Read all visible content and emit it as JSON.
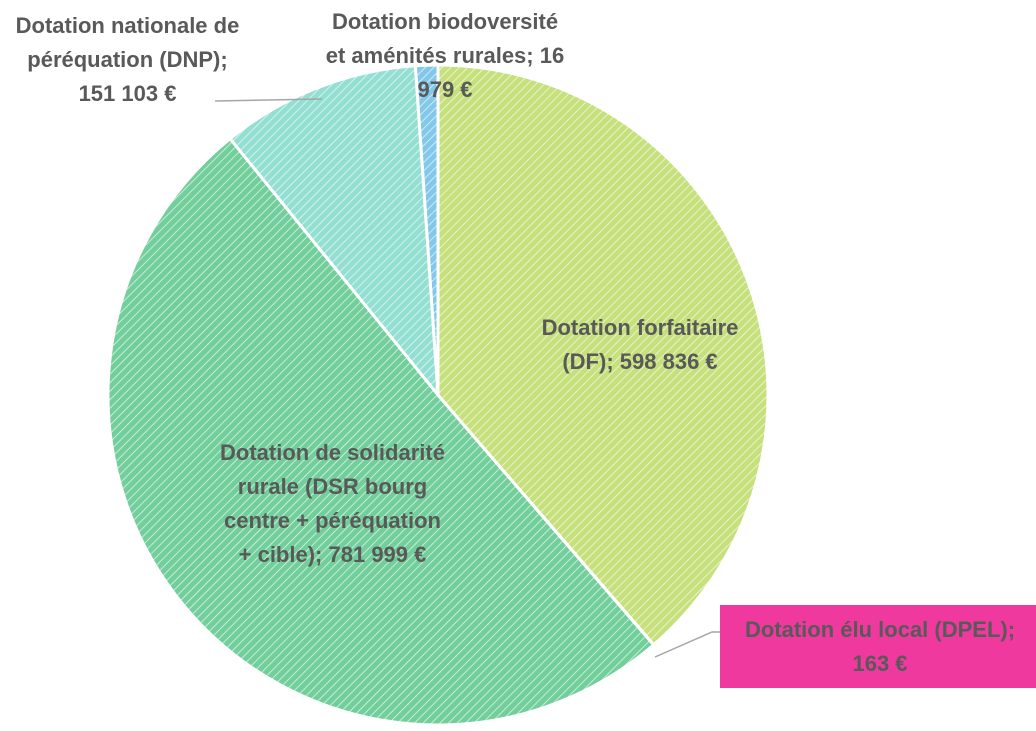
{
  "chart_data": {
    "type": "pie",
    "categories": [
      "Dotation forfaitaire (DF);",
      "Dotation élu local (DPEL);",
      "Dotation de solidarité rurale (DSR bourg centre + péréquation + cible);",
      "Dotation nationale de péréquation (DNP);",
      "Dotation biodoversité et aménités rurales;"
    ],
    "values": [
      598836,
      163,
      781999,
      151103,
      16979
    ],
    "value_labels": [
      "598 836 €",
      "163 €",
      "781 999 €",
      "151 103 €",
      "16 979 €"
    ],
    "colors": [
      "#c6e07c",
      "#f0399e",
      "#72cf9c",
      "#93dfd2",
      "#82c8ea"
    ]
  }
}
